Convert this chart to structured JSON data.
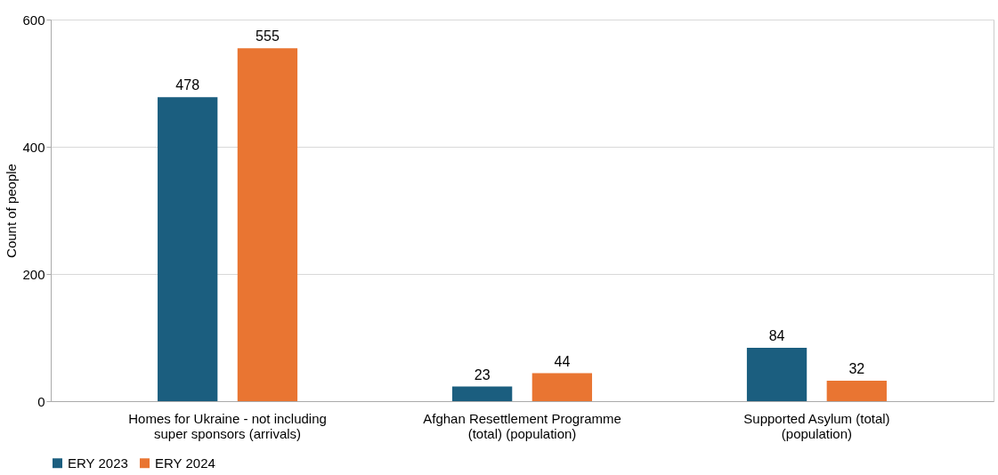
{
  "chart_data": {
    "type": "bar",
    "ylabel": "Count of people",
    "categories": [
      "Homes for Ukraine - not including super sponsors (arrivals)",
      "Afghan Resettlement Programme (total) (population)",
      "Supported Asylum (total) (population)"
    ],
    "series": [
      {
        "name": "ERY 2023",
        "color": "#1b5e7f",
        "values": [
          478,
          23,
          84
        ]
      },
      {
        "name": "ERY 2024",
        "color": "#e97532",
        "values": [
          555,
          44,
          32
        ]
      }
    ],
    "ylim": [
      0,
      600
    ],
    "yticks": [
      0,
      200,
      400,
      600
    ],
    "grid": "y",
    "legend": "bottom",
    "data_labels": true
  }
}
